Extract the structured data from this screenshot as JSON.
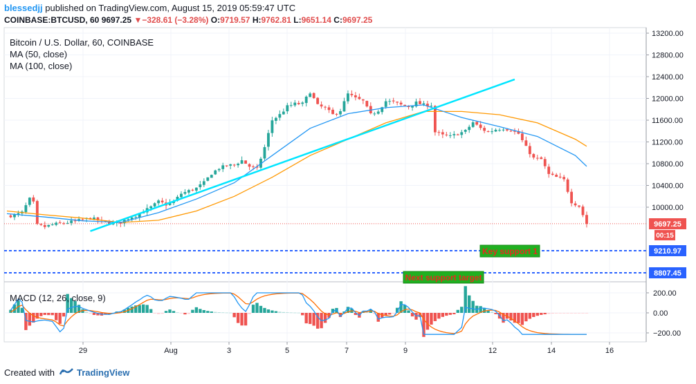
{
  "header": {
    "user": "blessedjj",
    "published_text": "published on TradingView.com, August 15, 2019 05:59:47 UTC",
    "symbol": "COINBASE:BTCUSD, 60",
    "last": "9697.25",
    "change_arrow": "▼",
    "change": "−328.61 (−3.28%)",
    "o_label": "O:",
    "o": "9719.57",
    "h_label": "H:",
    "h": "9762.81",
    "l_label": "L:",
    "l": "9651.14",
    "c_label": "C:",
    "c": "9697.25"
  },
  "legend": {
    "title": "Bitcoin / U.S. Dollar, 60, COINBASE",
    "ma50": "MA (50, close)",
    "ma100": "MA (100, close)",
    "macd": "MACD (12, 26, close, 9)"
  },
  "annotations": {
    "key_support": "Key support 1",
    "next_support": "Next support target",
    "price_label": "9697.25",
    "countdown": "00:15",
    "level1": "9210.97",
    "level2": "8807.45"
  },
  "footer": {
    "created": "Created with",
    "brand": "TradingView"
  },
  "colors": {
    "up": "#26a69a",
    "down": "#ef5350",
    "ma50": "#2196f3",
    "ma100": "#ff9800",
    "trendline": "#00e5ff",
    "support_line": "#2962ff",
    "label_green": "#20b020",
    "label_red_text": "#e8281f",
    "macd_line": "#2196f3",
    "signal_line": "#ff6d00"
  },
  "chart_data": {
    "type": "candlestick",
    "y_ticks": [
      13200,
      12800,
      12400,
      12000,
      11600,
      11200,
      10800,
      10400,
      10000
    ],
    "x_tick_labels": [
      "29",
      "Aug",
      "3",
      "5",
      "7",
      "9",
      "12",
      "14",
      "16"
    ],
    "macd_ticks": [
      "200.00",
      "0.00",
      "−200.00"
    ],
    "ylim": [
      9400,
      13300
    ],
    "close_path": [
      [
        0,
        9840
      ],
      [
        2,
        9850
      ],
      [
        4,
        9900
      ],
      [
        6,
        10150
      ],
      [
        7,
        10080
      ],
      [
        8,
        9670
      ],
      [
        10,
        9640
      ],
      [
        12,
        9680
      ],
      [
        14,
        9700
      ],
      [
        16,
        9720
      ],
      [
        18,
        9740
      ],
      [
        20,
        9770
      ],
      [
        22,
        9800
      ],
      [
        24,
        9760
      ],
      [
        26,
        9720
      ],
      [
        28,
        9700
      ],
      [
        30,
        9720
      ],
      [
        32,
        9800
      ],
      [
        34,
        9850
      ],
      [
        36,
        9920
      ],
      [
        38,
        10000
      ],
      [
        40,
        10100
      ],
      [
        42,
        10050
      ],
      [
        44,
        10100
      ],
      [
        46,
        10250
      ],
      [
        48,
        10300
      ],
      [
        50,
        10350
      ],
      [
        52,
        10450
      ],
      [
        54,
        10620
      ],
      [
        56,
        10720
      ],
      [
        58,
        10760
      ],
      [
        60,
        10780
      ],
      [
        62,
        10860
      ],
      [
        64,
        10750
      ],
      [
        66,
        10700
      ],
      [
        68,
        11100
      ],
      [
        70,
        11600
      ],
      [
        72,
        11700
      ],
      [
        74,
        11850
      ],
      [
        76,
        11900
      ],
      [
        78,
        11900
      ],
      [
        80,
        12120
      ],
      [
        82,
        11870
      ],
      [
        84,
        11820
      ],
      [
        86,
        11700
      ],
      [
        88,
        11780
      ],
      [
        90,
        12080
      ],
      [
        92,
        12000
      ],
      [
        94,
        11950
      ],
      [
        96,
        11700
      ],
      [
        98,
        11780
      ],
      [
        100,
        11950
      ],
      [
        102,
        11930
      ],
      [
        104,
        11880
      ],
      [
        106,
        11850
      ],
      [
        108,
        11920
      ],
      [
        110,
        11880
      ],
      [
        112,
        11880
      ],
      [
        113,
        11380
      ],
      [
        115,
        11320
      ],
      [
        117,
        11300
      ],
      [
        119,
        11350
      ],
      [
        121,
        11400
      ],
      [
        123,
        11560
      ],
      [
        125,
        11450
      ],
      [
        127,
        11380
      ],
      [
        129,
        11430
      ],
      [
        131,
        11450
      ],
      [
        133,
        11420
      ],
      [
        135,
        11350
      ],
      [
        137,
        11100
      ],
      [
        139,
        10900
      ],
      [
        141,
        10880
      ],
      [
        143,
        10600
      ],
      [
        145,
        10550
      ],
      [
        147,
        10500
      ],
      [
        149,
        10100
      ],
      [
        151,
        10020
      ],
      [
        153,
        9697
      ]
    ],
    "ma50_path": [
      [
        0,
        9880
      ],
      [
        10,
        9820
      ],
      [
        20,
        9750
      ],
      [
        30,
        9720
      ],
      [
        40,
        9900
      ],
      [
        50,
        10150
      ],
      [
        60,
        10450
      ],
      [
        70,
        10950
      ],
      [
        80,
        11450
      ],
      [
        90,
        11720
      ],
      [
        100,
        11830
      ],
      [
        110,
        11880
      ],
      [
        120,
        11650
      ],
      [
        130,
        11480
      ],
      [
        140,
        11300
      ],
      [
        150,
        10950
      ],
      [
        153,
        10750
      ]
    ],
    "ma100_path": [
      [
        0,
        9930
      ],
      [
        10,
        9860
      ],
      [
        20,
        9800
      ],
      [
        30,
        9720
      ],
      [
        40,
        9760
      ],
      [
        50,
        9930
      ],
      [
        60,
        10200
      ],
      [
        70,
        10550
      ],
      [
        80,
        10950
      ],
      [
        90,
        11250
      ],
      [
        100,
        11550
      ],
      [
        110,
        11760
      ],
      [
        120,
        11760
      ],
      [
        130,
        11700
      ],
      [
        140,
        11550
      ],
      [
        150,
        11250
      ],
      [
        153,
        11120
      ]
    ],
    "trendline": [
      [
        22,
        9560
      ],
      [
        134,
        12350
      ]
    ],
    "support_levels": [
      9210.97,
      8807.45
    ]
  }
}
